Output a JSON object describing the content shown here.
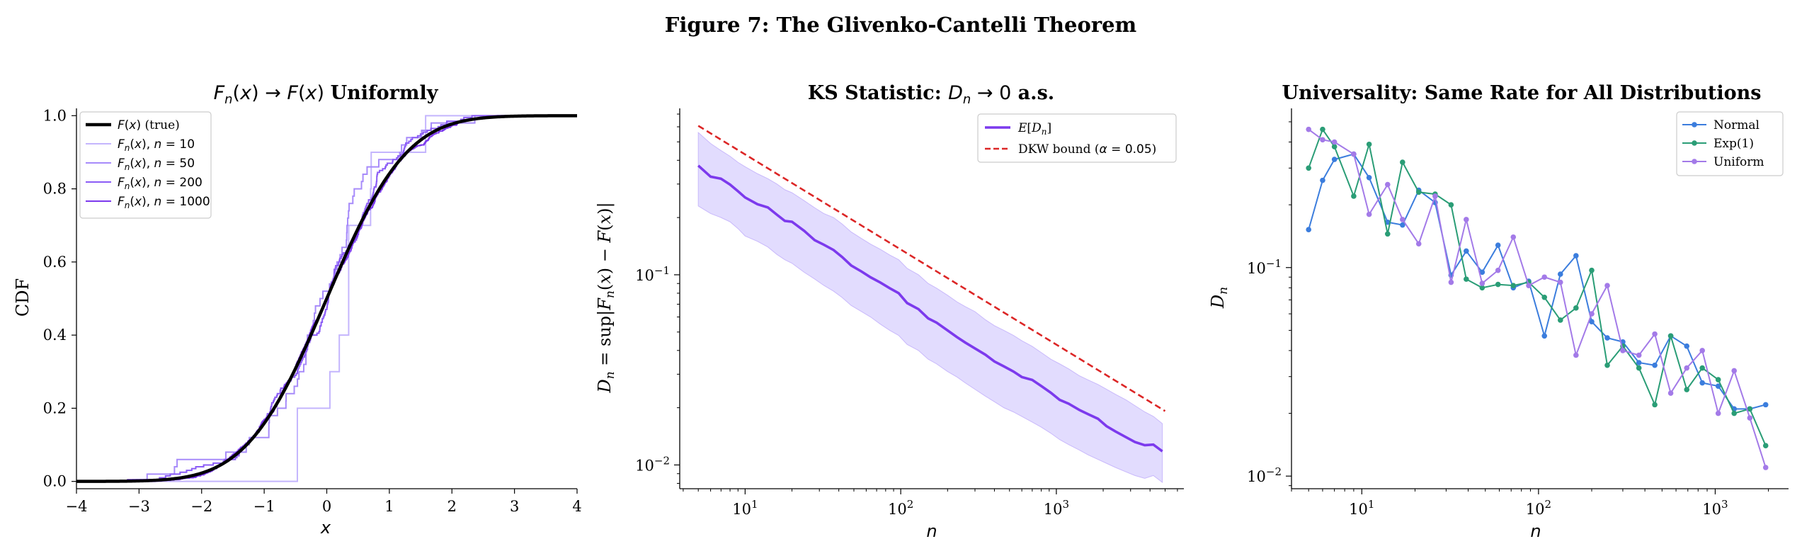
{
  "suptitle": "Figure 7: The Glivenko-Cantelli Theorem",
  "colors": {
    "true_cdf": "#000000",
    "ecdf_10": "#c4b5fd",
    "ecdf_50": "#a78bfa",
    "ecdf_200": "#8b5cf6",
    "ecdf_1000": "#7c3aed",
    "mean_dn": "#7c3aed",
    "band": "#ddd6fe",
    "dkw": "#dc2626",
    "normal": "#3b7ddd",
    "exp": "#2a9d76",
    "uniform": "#a37ae8"
  },
  "chart_data": [
    {
      "type": "line",
      "title": "F_n(x) → F(x) Uniformly",
      "xlabel": "x",
      "ylabel": "CDF",
      "xlim": [
        -4,
        4
      ],
      "ylim": [
        -0.02,
        1.02
      ],
      "xticks": [
        -4,
        -3,
        -2,
        -1,
        0,
        1,
        2,
        3,
        4
      ],
      "yticks": [
        0.0,
        0.2,
        0.4,
        0.6,
        0.8,
        1.0
      ],
      "legend_position": "top-left",
      "legend": [
        "F(x) (true)",
        "F_n(x), n = 10",
        "F_n(x), n = 50",
        "F_n(x), n = 200",
        "F_n(x), n = 1000"
      ],
      "series": [
        {
          "name": "F(x) (true)",
          "kind": "normal-cdf",
          "mu": 0,
          "sigma": 1
        },
        {
          "name": "F_n(x), n = 10",
          "kind": "step",
          "jumps": [
            -0.47,
            -0.47,
            0.05,
            0.2,
            0.35,
            0.35,
            0.35,
            0.7,
            0.71,
            1.58
          ]
        },
        {
          "name": "F_n(x), n = 50",
          "kind": "ecdf",
          "n": 50,
          "seed": 50
        },
        {
          "name": "F_n(x), n = 200",
          "kind": "ecdf",
          "n": 200,
          "seed": 200
        },
        {
          "name": "F_n(x), n = 1000",
          "kind": "ecdf",
          "n": 1000,
          "seed": 1000
        }
      ]
    },
    {
      "type": "line",
      "title": "KS Statistic: D_n → 0 a.s.",
      "xlabel": "n",
      "ylabel": "D_n = sup_x |F_n(x) − F(x)|",
      "xscale": "log",
      "yscale": "log",
      "xlim": [
        3.8,
        6600
      ],
      "ylim": [
        0.0075,
        0.75
      ],
      "xticks": [
        10,
        100,
        1000
      ],
      "xtick_labels": [
        "10^1",
        "10^2",
        "10^3"
      ],
      "yticks": [
        0.01,
        0.1
      ],
      "ytick_labels": [
        "10^-2",
        "10^-1"
      ],
      "legend_position": "top-right",
      "legend": [
        "E[D_n]",
        "DKW bound (α = 0.05)"
      ],
      "series": [
        {
          "name": "E[D_n]",
          "kind": "mean-curve",
          "n": [
            5,
            6,
            7,
            8,
            9,
            10,
            12,
            14,
            16,
            18,
            20,
            24,
            28,
            32,
            37,
            42,
            48,
            56,
            64,
            74,
            85,
            97,
            110,
            130,
            150,
            170,
            200,
            230,
            260,
            300,
            350,
            400,
            460,
            530,
            600,
            700,
            800,
            920,
            1050,
            1200,
            1400,
            1600,
            1850,
            2100,
            2400,
            2800,
            3200,
            3700,
            4200,
            4800
          ],
          "values": [
            0.375,
            0.328,
            0.32,
            0.298,
            0.275,
            0.255,
            0.235,
            0.226,
            0.207,
            0.192,
            0.19,
            0.17,
            0.152,
            0.144,
            0.135,
            0.124,
            0.112,
            0.104,
            0.097,
            0.091,
            0.085,
            0.08,
            0.071,
            0.066,
            0.059,
            0.056,
            0.051,
            0.047,
            0.044,
            0.041,
            0.038,
            0.035,
            0.033,
            0.031,
            0.029,
            0.028,
            0.026,
            0.024,
            0.022,
            0.021,
            0.0195,
            0.0185,
            0.0175,
            0.016,
            0.015,
            0.014,
            0.0132,
            0.0127,
            0.0128,
            0.0118
          ]
        },
        {
          "name": "band",
          "kind": "band",
          "n": [
            5,
            6,
            7,
            8,
            9,
            10,
            12,
            14,
            16,
            18,
            20,
            24,
            28,
            32,
            37,
            42,
            48,
            56,
            64,
            74,
            85,
            97,
            110,
            130,
            150,
            170,
            200,
            230,
            260,
            300,
            350,
            400,
            460,
            530,
            600,
            700,
            800,
            920,
            1050,
            1200,
            1400,
            1600,
            1850,
            2100,
            2400,
            2800,
            3200,
            3700,
            4200,
            4800
          ],
          "lower": [
            0.23,
            0.21,
            0.2,
            0.19,
            0.175,
            0.16,
            0.15,
            0.14,
            0.128,
            0.12,
            0.115,
            0.103,
            0.095,
            0.088,
            0.082,
            0.076,
            0.069,
            0.064,
            0.06,
            0.055,
            0.051,
            0.048,
            0.043,
            0.04,
            0.036,
            0.034,
            0.031,
            0.029,
            0.027,
            0.025,
            0.023,
            0.0215,
            0.02,
            0.019,
            0.018,
            0.0168,
            0.0158,
            0.0147,
            0.0136,
            0.0128,
            0.012,
            0.0113,
            0.0107,
            0.0102,
            0.0097,
            0.0092,
            0.0088,
            0.0085,
            0.0088,
            0.0081
          ],
          "upper": [
            0.56,
            0.49,
            0.45,
            0.42,
            0.39,
            0.37,
            0.34,
            0.32,
            0.3,
            0.28,
            0.27,
            0.245,
            0.225,
            0.21,
            0.2,
            0.185,
            0.168,
            0.155,
            0.145,
            0.136,
            0.127,
            0.12,
            0.108,
            0.1,
            0.09,
            0.085,
            0.078,
            0.072,
            0.068,
            0.064,
            0.058,
            0.054,
            0.051,
            0.048,
            0.045,
            0.042,
            0.039,
            0.036,
            0.034,
            0.032,
            0.0295,
            0.028,
            0.0265,
            0.025,
            0.0235,
            0.022,
            0.0205,
            0.019,
            0.018,
            0.0165
          ]
        },
        {
          "name": "DKW bound (α = 0.05)",
          "kind": "dkw",
          "n_range": [
            5,
            5000
          ],
          "alpha": 0.05
        }
      ]
    },
    {
      "type": "line",
      "title": "Universality: Same Rate for All Distributions",
      "xlabel": "n",
      "ylabel": "D_n",
      "xscale": "log",
      "yscale": "log",
      "xlim": [
        4.0,
        2600
      ],
      "ylim": [
        0.0087,
        0.58
      ],
      "xticks": [
        10,
        100,
        1000
      ],
      "xtick_labels": [
        "10^1",
        "10^2",
        "10^3"
      ],
      "yticks": [
        0.01,
        0.1
      ],
      "ytick_labels": [
        "10^-2",
        "10^-1"
      ],
      "legend_position": "top-right",
      "legend": [
        "Normal",
        "Exp(1)",
        "Uniform"
      ],
      "x": [
        5,
        6,
        7,
        9,
        11,
        14,
        17,
        21,
        26,
        32,
        39,
        48,
        59,
        72,
        88,
        108,
        133,
        163,
        200,
        245,
        300,
        370,
        455,
        560,
        690,
        845,
        1040,
        1280,
        1570,
        1930
      ],
      "series": [
        {
          "name": "Normal",
          "values": [
            0.152,
            0.262,
            0.33,
            0.35,
            0.27,
            0.165,
            0.16,
            0.235,
            0.205,
            0.092,
            0.12,
            0.095,
            0.128,
            0.08,
            0.086,
            0.047,
            0.093,
            0.114,
            0.055,
            0.046,
            0.044,
            0.035,
            0.034,
            0.047,
            0.042,
            0.028,
            0.027,
            0.021,
            0.021,
            0.022
          ]
        },
        {
          "name": "Exp(1)",
          "values": [
            0.3,
            0.46,
            0.38,
            0.22,
            0.39,
            0.145,
            0.32,
            0.23,
            0.225,
            0.2,
            0.088,
            0.08,
            0.083,
            0.082,
            0.085,
            0.072,
            0.056,
            0.064,
            0.097,
            0.034,
            0.042,
            0.033,
            0.022,
            0.047,
            0.026,
            0.033,
            0.029,
            0.02,
            0.021,
            0.014
          ]
        },
        {
          "name": "Uniform",
          "values": [
            0.46,
            0.41,
            0.4,
            0.35,
            0.18,
            0.25,
            0.17,
            0.13,
            0.22,
            0.085,
            0.17,
            0.084,
            0.097,
            0.14,
            0.082,
            0.09,
            0.085,
            0.038,
            0.06,
            0.082,
            0.04,
            0.038,
            0.048,
            0.025,
            0.033,
            0.04,
            0.02,
            0.032,
            0.019,
            0.011
          ]
        }
      ]
    }
  ]
}
